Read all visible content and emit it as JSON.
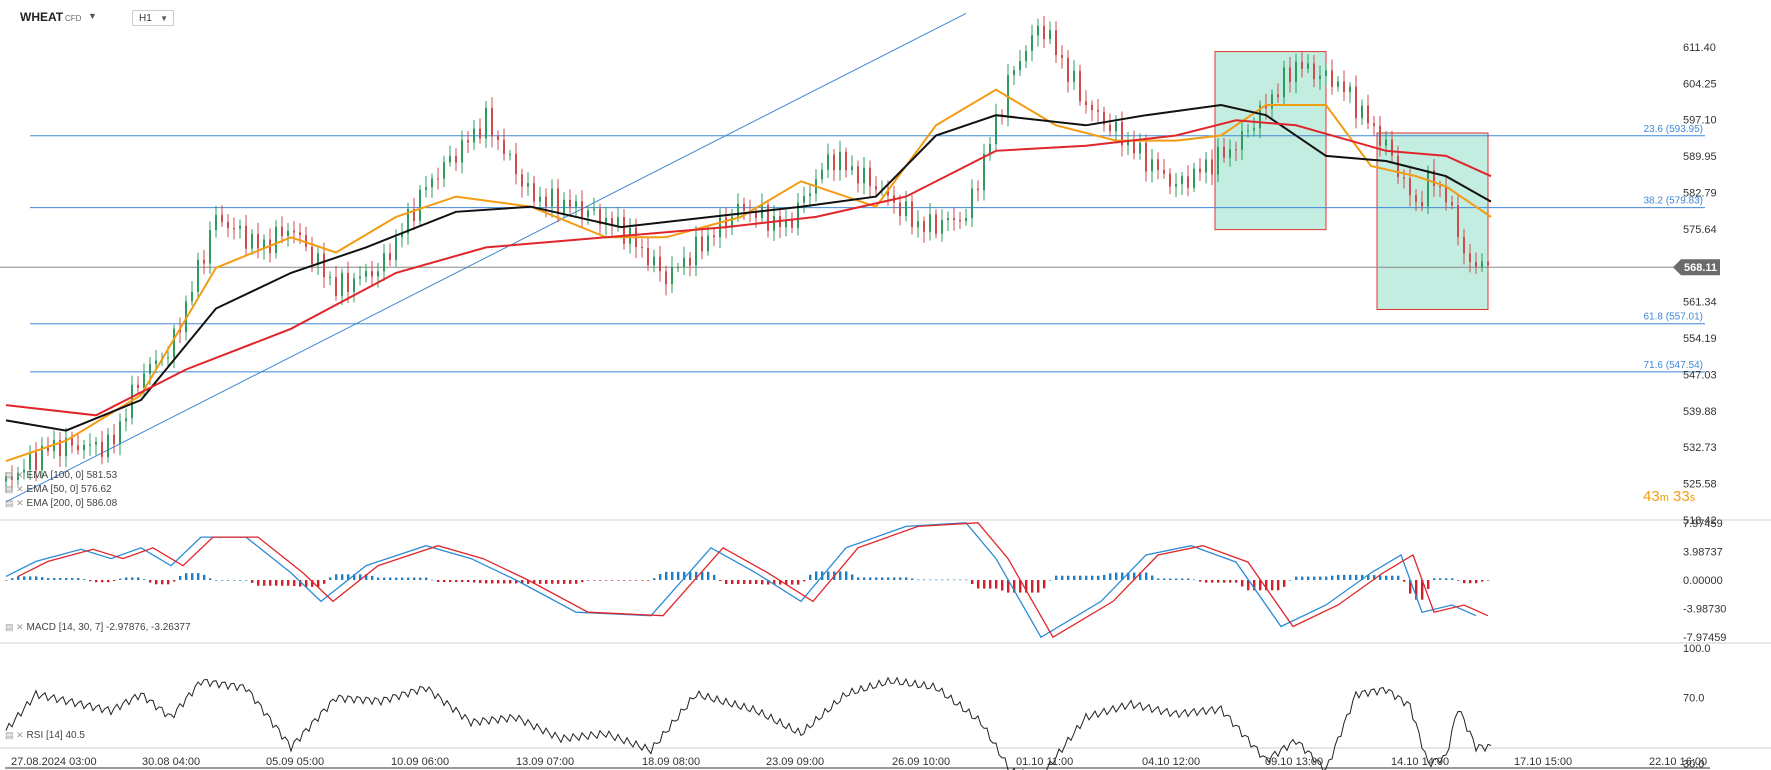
{
  "header": {
    "symbol": "WHEAT",
    "instrument_type": "CFD",
    "timeframe": "H1"
  },
  "indicators": {
    "ema100": "EMA [100, 0] 581.53",
    "ema50": "EMA [50, 0] 576.62",
    "ema200": "EMA [200, 0] 586.08",
    "macd": "MACD [14, 30, 7] -2.97876, -3.26377",
    "rsi": "RSI [14] 40.5"
  },
  "countdown": {
    "minutes": "43",
    "m": "m",
    "seconds": "33",
    "s": "s"
  },
  "current_price": "568.11",
  "colors": {
    "ema50": "#f39c12",
    "ema100": "#111111",
    "ema200": "#e0262b",
    "macd_pos": "#1e7fc4",
    "macd_neg": "#d0202a",
    "fib": "#3f88d6",
    "zone_fill": "#a9e5d3",
    "zone_border": "#e03434"
  },
  "chart_data": [
    {
      "type": "candlestick",
      "title": "WHEAT CFD H1",
      "x_ticks": [
        "27.08.2024 03:00",
        "30.08 04:00",
        "05.09 05:00",
        "10.09 06:00",
        "13.09 07:00",
        "18.09 08:00",
        "23.09 09:00",
        "26.09 10:00",
        "01.10 11:00",
        "04.10 12:00",
        "09.10 13:00",
        "14.10 14:00",
        "17.10 15:00",
        "22.10 16:00"
      ],
      "y_ticks": [
        "611.40",
        "604.25",
        "597.10",
        "589.95",
        "582.79",
        "575.64",
        "568.11",
        "561.34",
        "554.19",
        "547.03",
        "539.88",
        "532.73",
        "525.58",
        "518.42"
      ],
      "ylim": [
        518.42,
        611.4
      ],
      "price_path": [
        [
          0,
          526
        ],
        [
          15,
          533
        ],
        [
          35,
          533
        ],
        [
          45,
          547
        ],
        [
          55,
          552
        ],
        [
          70,
          578
        ],
        [
          85,
          572
        ],
        [
          95,
          576
        ],
        [
          110,
          564
        ],
        [
          125,
          568
        ],
        [
          140,
          584
        ],
        [
          160,
          597
        ],
        [
          175,
          582
        ],
        [
          190,
          580
        ],
        [
          205,
          576
        ],
        [
          220,
          566
        ],
        [
          245,
          580
        ],
        [
          260,
          576
        ],
        [
          275,
          590
        ],
        [
          290,
          584
        ],
        [
          305,
          576
        ],
        [
          320,
          578
        ],
        [
          335,
          606
        ],
        [
          345,
          616
        ],
        [
          360,
          600
        ],
        [
          375,
          592
        ],
        [
          390,
          584
        ],
        [
          410,
          592
        ],
        [
          430,
          608
        ],
        [
          445,
          604
        ],
        [
          460,
          592
        ],
        [
          470,
          580
        ],
        [
          475,
          586
        ],
        [
          480,
          582
        ],
        [
          488,
          568
        ],
        [
          495,
          570
        ]
      ],
      "emas": [
        {
          "name": "EMA 50",
          "path": [
            [
              0,
              530
            ],
            [
              20,
              534
            ],
            [
              45,
              543
            ],
            [
              70,
              568
            ],
            [
              95,
              574
            ],
            [
              110,
              571
            ],
            [
              130,
              578
            ],
            [
              150,
              582
            ],
            [
              175,
              580
            ],
            [
              200,
              574
            ],
            [
              220,
              574
            ],
            [
              245,
              578
            ],
            [
              265,
              585
            ],
            [
              290,
              580
            ],
            [
              310,
              596
            ],
            [
              330,
              603
            ],
            [
              350,
              596
            ],
            [
              370,
              593
            ],
            [
              390,
              593
            ],
            [
              405,
              594
            ],
            [
              420,
              600
            ],
            [
              440,
              600
            ],
            [
              455,
              588
            ],
            [
              470,
              586
            ],
            [
              480,
              584
            ],
            [
              495,
              578
            ]
          ]
        },
        {
          "name": "EMA 100",
          "path": [
            [
              0,
              538
            ],
            [
              20,
              536
            ],
            [
              45,
              542
            ],
            [
              70,
              560
            ],
            [
              95,
              567
            ],
            [
              120,
              572
            ],
            [
              150,
              579
            ],
            [
              175,
              580
            ],
            [
              205,
              576
            ],
            [
              235,
              578
            ],
            [
              265,
              580
            ],
            [
              290,
              582
            ],
            [
              310,
              594
            ],
            [
              330,
              598
            ],
            [
              360,
              596
            ],
            [
              380,
              598
            ],
            [
              405,
              600
            ],
            [
              420,
              598
            ],
            [
              440,
              590
            ],
            [
              460,
              589
            ],
            [
              480,
              586
            ],
            [
              495,
              581
            ]
          ]
        },
        {
          "name": "EMA 200",
          "path": [
            [
              0,
              541
            ],
            [
              30,
              539
            ],
            [
              60,
              548
            ],
            [
              95,
              556
            ],
            [
              130,
              567
            ],
            [
              160,
              572
            ],
            [
              200,
              574
            ],
            [
              240,
              576
            ],
            [
              270,
              578
            ],
            [
              300,
              582
            ],
            [
              330,
              591
            ],
            [
              360,
              592
            ],
            [
              390,
              594
            ],
            [
              410,
              597
            ],
            [
              430,
              596
            ],
            [
              460,
              591
            ],
            [
              480,
              590
            ],
            [
              495,
              586
            ]
          ]
        }
      ],
      "fibonacci": [
        {
          "label": "23.6 (593.95)",
          "value": 593.95
        },
        {
          "label": "38.2 (579.83)",
          "value": 579.83
        },
        {
          "label": "61.8 (557.01)",
          "value": 557.01
        },
        {
          "label": "71.6 (547.54)",
          "value": 547.54
        }
      ],
      "trendline": [
        [
          0,
          522
        ],
        [
          320,
          618
        ]
      ],
      "zones": [
        {
          "x0": 403,
          "x1": 440,
          "y0": 575.5,
          "y1": 610.5
        },
        {
          "x0": 457,
          "x1": 494,
          "y0": 559.8,
          "y1": 594.5
        }
      ]
    },
    {
      "type": "bar+line",
      "name": "MACD [14, 30, 7]",
      "y_ticks": [
        "7.97459",
        "3.98737",
        "0.00000",
        "-3.98730",
        "-7.97459"
      ],
      "ylim": [
        -7.97459,
        7.97459
      ],
      "macd_path": [
        [
          0,
          0.5
        ],
        [
          10,
          2.6
        ],
        [
          25,
          4.3
        ],
        [
          35,
          3.0
        ],
        [
          45,
          4.5
        ],
        [
          55,
          2.0
        ],
        [
          65,
          6.0
        ],
        [
          80,
          6.0
        ],
        [
          95,
          1.0
        ],
        [
          105,
          -3.0
        ],
        [
          120,
          2.0
        ],
        [
          140,
          4.8
        ],
        [
          155,
          3.0
        ],
        [
          170,
          0
        ],
        [
          190,
          -4.5
        ],
        [
          215,
          -5.0
        ],
        [
          235,
          4.5
        ],
        [
          250,
          1.0
        ],
        [
          265,
          -3.0
        ],
        [
          280,
          4.5
        ],
        [
          300,
          7.5
        ],
        [
          320,
          8.0
        ],
        [
          330,
          3.0
        ],
        [
          345,
          -8.0
        ],
        [
          365,
          -3.0
        ],
        [
          380,
          3.5
        ],
        [
          395,
          4.8
        ],
        [
          410,
          2.5
        ],
        [
          425,
          -6.5
        ],
        [
          440,
          -3.5
        ],
        [
          455,
          1.0
        ],
        [
          465,
          3.5
        ],
        [
          472,
          -4.5
        ],
        [
          482,
          -3.5
        ],
        [
          490,
          -5.0
        ]
      ]
    },
    {
      "type": "line",
      "name": "RSI [14]",
      "y_ticks": [
        "100.0",
        "70.0",
        "30.0"
      ],
      "ylim": [
        0,
        100
      ],
      "rsi_path": [
        [
          0,
          50
        ],
        [
          10,
          72
        ],
        [
          20,
          68
        ],
        [
          35,
          62
        ],
        [
          45,
          72
        ],
        [
          55,
          58
        ],
        [
          65,
          80
        ],
        [
          80,
          76
        ],
        [
          95,
          40
        ],
        [
          110,
          70
        ],
        [
          125,
          68
        ],
        [
          140,
          76
        ],
        [
          155,
          55
        ],
        [
          170,
          58
        ],
        [
          185,
          45
        ],
        [
          200,
          48
        ],
        [
          215,
          38
        ],
        [
          230,
          72
        ],
        [
          250,
          62
        ],
        [
          265,
          48
        ],
        [
          280,
          72
        ],
        [
          295,
          80
        ],
        [
          310,
          76
        ],
        [
          325,
          55
        ],
        [
          335,
          25
        ],
        [
          345,
          22
        ],
        [
          360,
          58
        ],
        [
          375,
          66
        ],
        [
          390,
          60
        ],
        [
          405,
          63
        ],
        [
          420,
          32
        ],
        [
          430,
          44
        ],
        [
          440,
          26
        ],
        [
          450,
          72
        ],
        [
          460,
          75
        ],
        [
          468,
          65
        ],
        [
          474,
          30
        ],
        [
          480,
          34
        ],
        [
          484,
          64
        ],
        [
          490,
          40
        ]
      ]
    }
  ]
}
